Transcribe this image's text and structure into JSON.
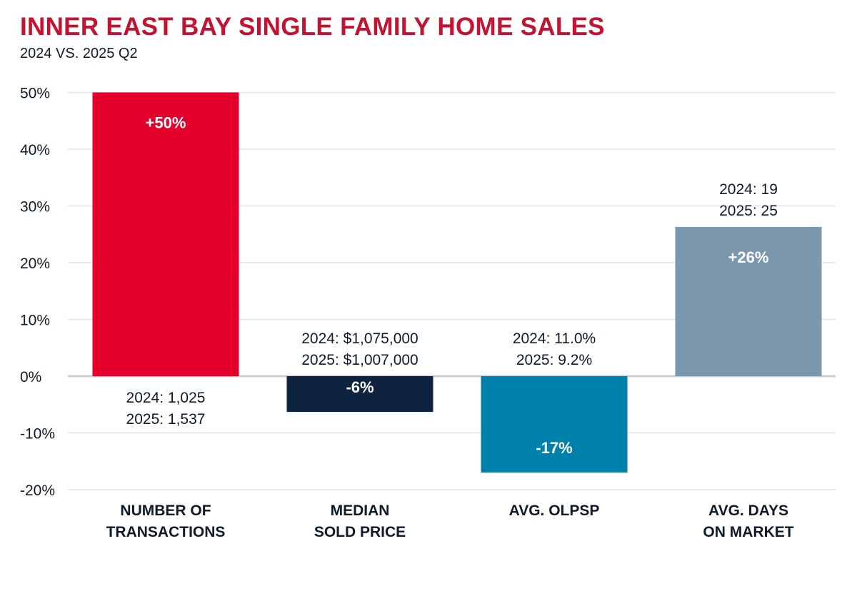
{
  "chart_data": {
    "type": "bar",
    "title": "INNER EAST BAY SINGLE FAMILY HOME SALES",
    "subtitle": "2024 VS. 2025 Q2",
    "categories": [
      [
        "NUMBER OF",
        "TRANSACTIONS"
      ],
      [
        "MEDIAN",
        "SOLD PRICE"
      ],
      [
        "AVG. OLPSP"
      ],
      [
        "AVG. DAYS",
        "ON MARKET"
      ]
    ],
    "values": [
      50,
      -6.3,
      -17,
      26.3
    ],
    "data_labels": [
      "+50%",
      "-6%",
      "-17%",
      "+26%"
    ],
    "annotations": [
      [
        "2024: 1,025",
        "2025: 1,537"
      ],
      [
        "2024: $1,075,000",
        "2025: $1,007,000"
      ],
      [
        "2024: 11.0%",
        "2025: 9.2%"
      ],
      [
        "2024: 19",
        "2025: 25"
      ]
    ],
    "colors": [
      "#E4002B",
      "#0D2340",
      "#0081AC",
      "#7A97AE"
    ],
    "ylim": [
      -20,
      50
    ],
    "yticks": [
      50,
      40,
      30,
      20,
      10,
      0,
      -10,
      -20
    ],
    "ytick_labels": [
      "50%",
      "40%",
      "30%",
      "20%",
      "10%",
      "0%",
      "-10%",
      "-20%"
    ],
    "grid": true,
    "xlabel": "",
    "ylabel": ""
  }
}
